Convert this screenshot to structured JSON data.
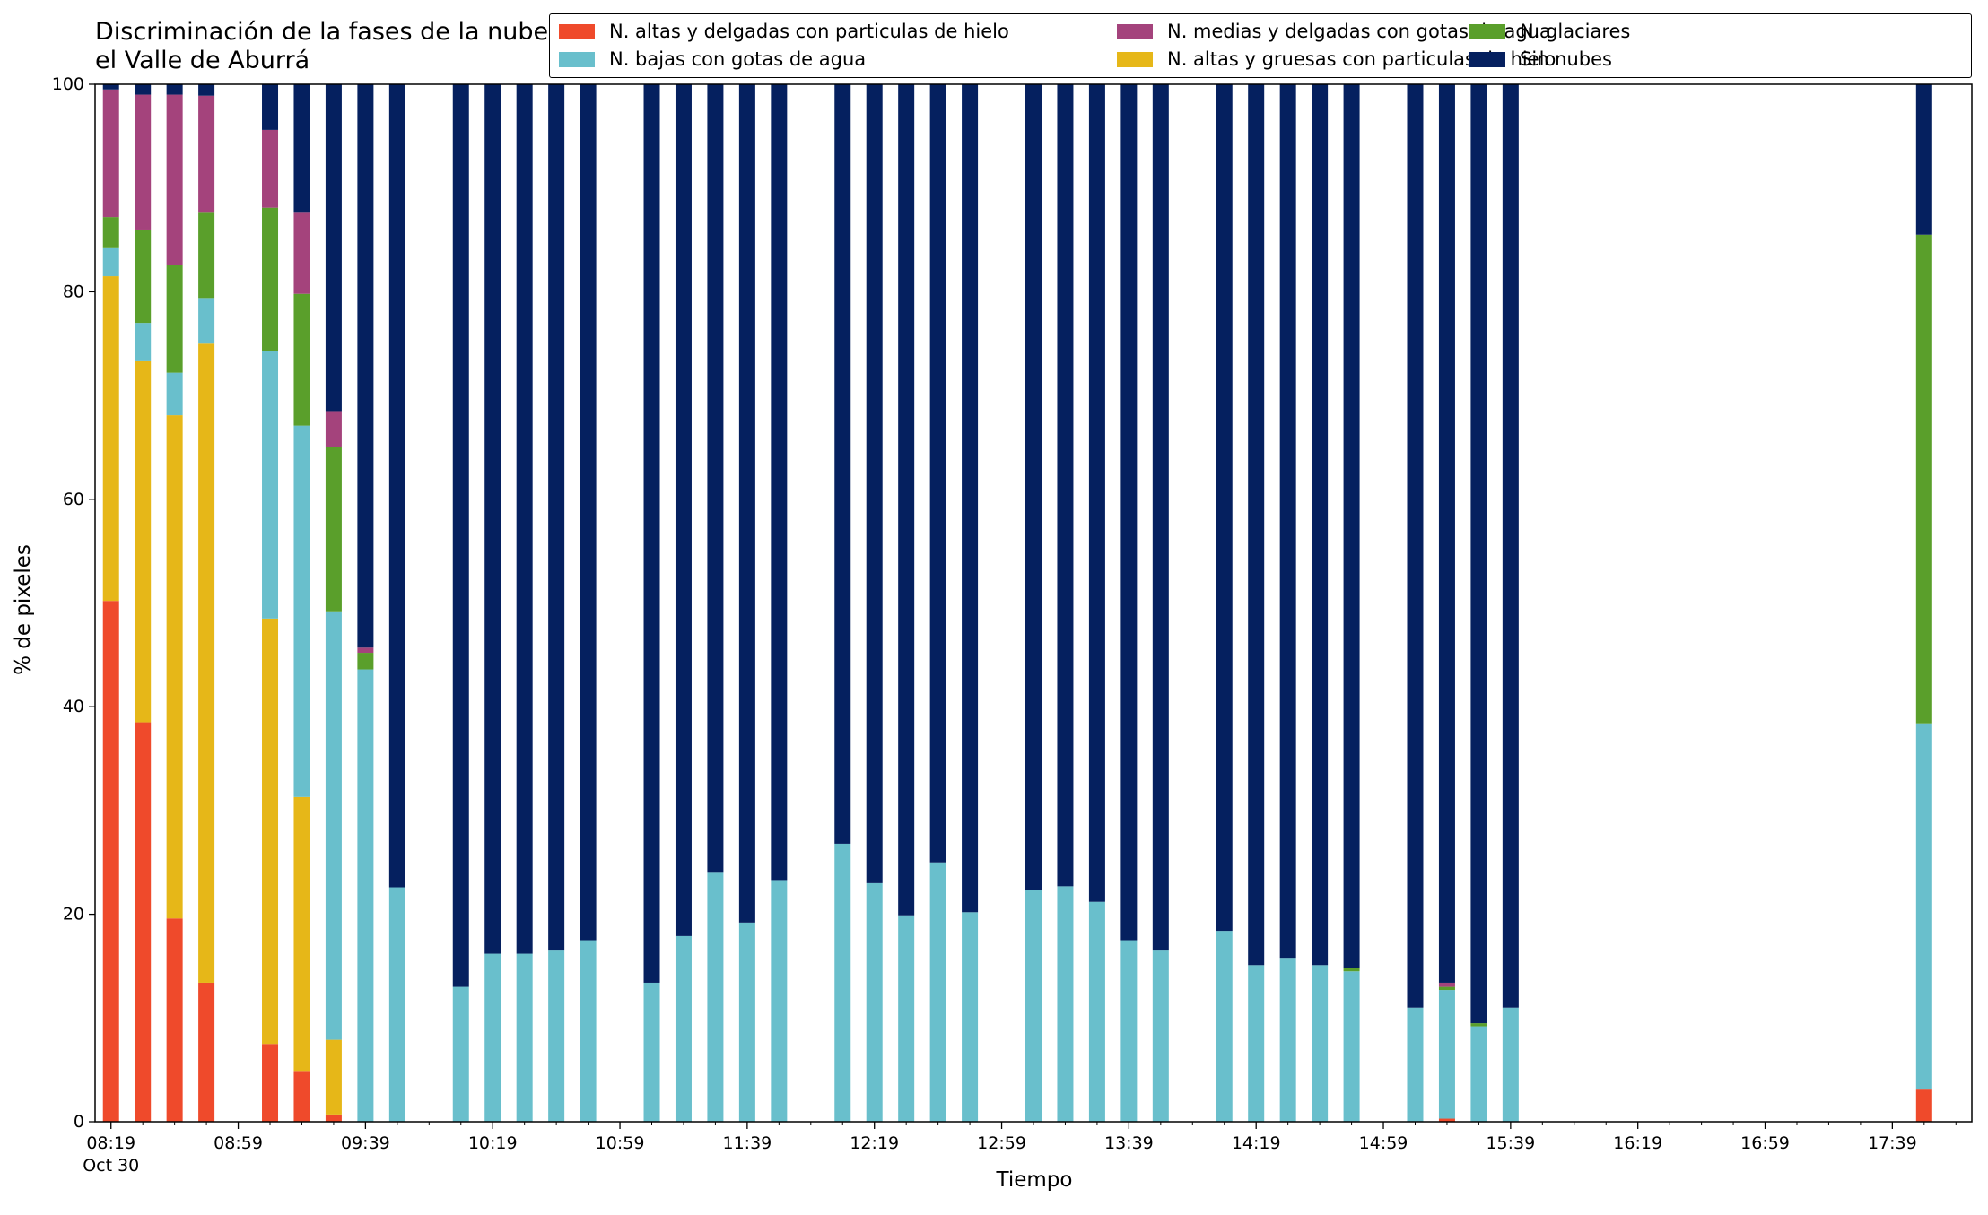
{
  "chart_data": {
    "type": "bar",
    "stacked": true,
    "title": "Discriminación de la fases de la nube en el Valle de Aburrá",
    "xlabel": "Tiempo",
    "ylabel": "% de pixeles",
    "ylim": [
      0,
      100
    ],
    "yticks": [
      "0",
      "20",
      "40",
      "60",
      "80",
      "100"
    ],
    "xlim_minutes_after_0819": [
      -5,
      585
    ],
    "x_tick_labels": [
      "08:19\nOct 30",
      "08:59",
      "09:39",
      "10:19",
      "10:59",
      "11:39",
      "12:19",
      "12:59",
      "13:39",
      "14:19",
      "14:59",
      "15:39",
      "16:19",
      "16:59",
      "17:39"
    ],
    "x_minor_tick_every_minutes": 10,
    "grid": false,
    "legend_position": "top-right",
    "series": [
      {
        "name": "N. altas y delgadas con particulas de hielo",
        "color": "#ef4a2b"
      },
      {
        "name": "N. altas y gruesas con particulas de hielo",
        "color": "#e6b718"
      },
      {
        "name": "N. bajas con gotas de agua",
        "color": "#69bfcc"
      },
      {
        "name": "N. glaciares",
        "color": "#5a9f2b"
      },
      {
        "name": "N. medias y delgadas con gotas de agua",
        "color": "#a4437c"
      },
      {
        "name": "Sin nubes",
        "color": "#05205f"
      }
    ],
    "legend_order": [
      0,
      2,
      4,
      1,
      3,
      5
    ],
    "bars": [
      {
        "time": "08:19",
        "values": [
          50.2,
          31.3,
          2.7,
          3.0,
          12.3,
          0.5
        ]
      },
      {
        "time": "08:29",
        "values": [
          38.5,
          34.8,
          3.7,
          9.0,
          13.0,
          1.0
        ]
      },
      {
        "time": "08:39",
        "values": [
          19.6,
          48.5,
          4.1,
          10.4,
          16.4,
          1.0
        ]
      },
      {
        "time": "08:49",
        "values": [
          13.4,
          61.6,
          4.4,
          8.3,
          11.2,
          1.1
        ]
      },
      {
        "time": "09:09",
        "values": [
          7.5,
          41.0,
          25.8,
          13.8,
          7.5,
          4.4
        ]
      },
      {
        "time": "09:19",
        "values": [
          4.9,
          26.4,
          35.8,
          12.7,
          7.9,
          12.3
        ]
      },
      {
        "time": "09:29",
        "values": [
          0.7,
          7.2,
          41.3,
          15.8,
          3.5,
          31.5
        ]
      },
      {
        "time": "09:39",
        "values": [
          0,
          0,
          43.6,
          1.6,
          0.5,
          54.3
        ]
      },
      {
        "time": "09:49",
        "values": [
          0,
          0,
          22.6,
          0,
          0,
          77.4
        ]
      },
      {
        "time": "10:09",
        "values": [
          0,
          0,
          13.0,
          0,
          0,
          87.0
        ]
      },
      {
        "time": "10:19",
        "values": [
          0,
          0,
          16.2,
          0,
          0,
          83.8
        ]
      },
      {
        "time": "10:29",
        "values": [
          0,
          0,
          16.2,
          0,
          0,
          83.8
        ]
      },
      {
        "time": "10:39",
        "values": [
          0,
          0,
          16.5,
          0,
          0,
          83.5
        ]
      },
      {
        "time": "10:49",
        "values": [
          0,
          0,
          17.5,
          0,
          0,
          82.5
        ]
      },
      {
        "time": "11:09",
        "values": [
          0,
          0,
          13.4,
          0,
          0,
          86.6
        ]
      },
      {
        "time": "11:19",
        "values": [
          0,
          0,
          17.9,
          0,
          0,
          82.1
        ]
      },
      {
        "time": "11:29",
        "values": [
          0,
          0,
          24.0,
          0,
          0,
          76.0
        ]
      },
      {
        "time": "11:39",
        "values": [
          0,
          0,
          19.2,
          0,
          0,
          80.8
        ]
      },
      {
        "time": "11:49",
        "values": [
          0,
          0,
          23.3,
          0,
          0,
          76.7
        ]
      },
      {
        "time": "12:09",
        "values": [
          0,
          0,
          26.8,
          0,
          0,
          73.2
        ]
      },
      {
        "time": "12:19",
        "values": [
          0,
          0,
          23.0,
          0,
          0,
          77.0
        ]
      },
      {
        "time": "12:29",
        "values": [
          0,
          0,
          19.9,
          0,
          0,
          80.1
        ]
      },
      {
        "time": "12:39",
        "values": [
          0,
          0,
          25.0,
          0,
          0,
          75.0
        ]
      },
      {
        "time": "12:49",
        "values": [
          0,
          0,
          20.2,
          0,
          0,
          79.8
        ]
      },
      {
        "time": "13:09",
        "values": [
          0,
          0,
          22.3,
          0,
          0,
          77.7
        ]
      },
      {
        "time": "13:19",
        "values": [
          0,
          0,
          22.7,
          0,
          0,
          77.3
        ]
      },
      {
        "time": "13:29",
        "values": [
          0,
          0,
          21.2,
          0,
          0,
          78.8
        ]
      },
      {
        "time": "13:39",
        "values": [
          0,
          0,
          17.5,
          0,
          0,
          82.5
        ]
      },
      {
        "time": "13:49",
        "values": [
          0,
          0,
          16.5,
          0,
          0,
          83.5
        ]
      },
      {
        "time": "14:09",
        "values": [
          0,
          0,
          18.4,
          0,
          0,
          81.6
        ]
      },
      {
        "time": "14:19",
        "values": [
          0,
          0,
          15.1,
          0,
          0,
          84.9
        ]
      },
      {
        "time": "14:29",
        "values": [
          0,
          0,
          15.8,
          0,
          0,
          84.2
        ]
      },
      {
        "time": "14:39",
        "values": [
          0,
          0,
          15.1,
          0,
          0,
          84.9
        ]
      },
      {
        "time": "14:49",
        "values": [
          0,
          0,
          14.5,
          0.3,
          0,
          85.2
        ]
      },
      {
        "time": "15:09",
        "values": [
          0,
          0,
          11.0,
          0,
          0,
          89.0
        ]
      },
      {
        "time": "15:19",
        "values": [
          0.3,
          0,
          12.4,
          0.3,
          0.4,
          86.6
        ]
      },
      {
        "time": "15:29",
        "values": [
          0,
          0,
          9.2,
          0.3,
          0,
          90.5
        ]
      },
      {
        "time": "15:39",
        "values": [
          0,
          0,
          11.0,
          0,
          0,
          89.0
        ]
      },
      {
        "time": "17:49",
        "values": [
          3.1,
          0,
          35.3,
          47.1,
          0,
          14.5
        ]
      }
    ]
  }
}
